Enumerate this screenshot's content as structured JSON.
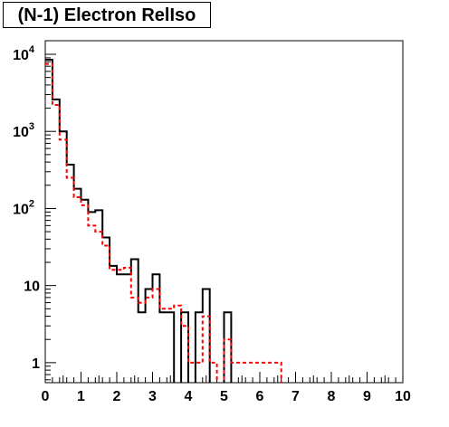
{
  "title": "(N-1) Electron RelIso",
  "chart_data": {
    "type": "histogram-step",
    "title": "(N-1) Electron RelIso",
    "xlabel": "",
    "ylabel": "",
    "xlim": [
      0,
      10
    ],
    "ylim": [
      0.55,
      15000
    ],
    "yscale": "log",
    "bin_width": 0.2,
    "x_ticks": [
      "0",
      "1",
      "2",
      "3",
      "4",
      "5",
      "6",
      "7",
      "8",
      "9",
      "10"
    ],
    "y_ticks": [
      {
        "value": 1,
        "base": "1",
        "exp": ""
      },
      {
        "value": 10,
        "base": "10",
        "exp": ""
      },
      {
        "value": 100,
        "base": "10",
        "exp": "2"
      },
      {
        "value": 1000,
        "base": "10",
        "exp": "3"
      },
      {
        "value": 10000,
        "base": "10",
        "exp": "4"
      }
    ],
    "series": [
      {
        "color": "#000000",
        "style": "solid",
        "values": [
          8500,
          2600,
          1000,
          370,
          180,
          130,
          90,
          95,
          42,
          18,
          14,
          14,
          22,
          4.5,
          9,
          14,
          4.5,
          4.5,
          0,
          4.5,
          0,
          4.5,
          9,
          0,
          0,
          4.5,
          0,
          0,
          0,
          0,
          0,
          0,
          0,
          0,
          0,
          0,
          0,
          0,
          0,
          0,
          0,
          0,
          0,
          0,
          0,
          0,
          0,
          0,
          0,
          0,
          0
        ]
      },
      {
        "color": "#ff0000",
        "style": "dashed",
        "values": [
          7500,
          2200,
          780,
          250,
          140,
          110,
          60,
          50,
          33,
          16,
          16,
          17,
          7,
          6,
          7,
          9,
          5,
          5,
          5.5,
          3,
          1,
          1,
          4,
          1,
          0,
          2,
          1,
          1,
          1,
          1,
          1,
          1,
          1,
          0,
          0,
          0,
          0,
          0,
          0,
          0,
          0,
          0,
          0,
          0,
          0,
          0,
          0,
          0,
          0,
          0,
          0
        ]
      }
    ]
  }
}
